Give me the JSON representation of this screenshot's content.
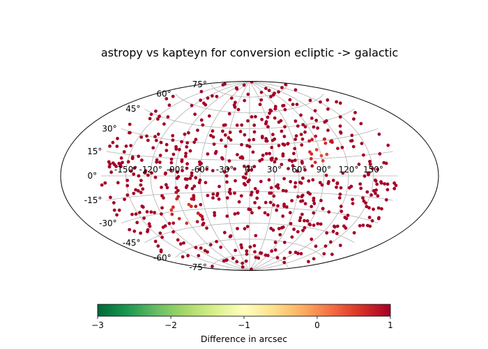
{
  "chart_data": {
    "type": "scatter",
    "projection": "aitoff",
    "title": "astropy vs kapteyn for conversion ecliptic -> galactic",
    "xlabel": "",
    "ylabel": "",
    "grid": true,
    "lon_ticks": [
      "-150°",
      "-120°",
      "-90°",
      "-60°",
      "-30°",
      "0°",
      "30°",
      "60°",
      "90°",
      "120°",
      "150°"
    ],
    "lat_ticks_left": [
      "75°",
      "60°",
      "45°",
      "30°",
      "15°",
      "0°",
      "-15°",
      "-30°",
      "-45°",
      "-60°",
      "-75°"
    ],
    "colorbar": {
      "label": "Difference in arcsec",
      "range": [
        -3,
        1
      ],
      "ticks": [
        "−3",
        "−2",
        "−1",
        "0",
        "1"
      ],
      "colormap": "RdYlGn_r",
      "colors": [
        "#006837",
        "#1a9850",
        "#66bd63",
        "#a6d96a",
        "#d9ef8b",
        "#ffffbf",
        "#fee08b",
        "#fdae61",
        "#f46d43",
        "#d73027",
        "#a50026"
      ]
    },
    "points_summary": {
      "count": 650,
      "dominant_value": 1.0,
      "regions_with_lower_values": [
        {
          "lon_center": 90,
          "lat_center": 20,
          "value": 0.2
        },
        {
          "lon_center": -90,
          "lat_center": -30,
          "value": 0.2
        }
      ]
    }
  }
}
